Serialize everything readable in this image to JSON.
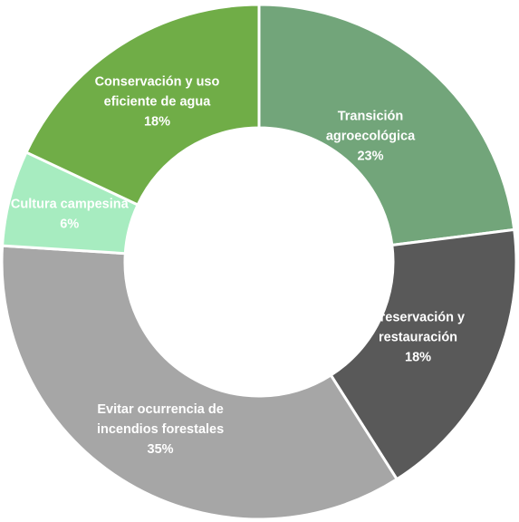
{
  "chart_data": {
    "type": "pie",
    "variant": "donut",
    "title": "",
    "slices": [
      {
        "label_lines": [
          "Transición",
          "agroecológica"
        ],
        "value_label": "23%",
        "value": 23,
        "color": "#72a57a"
      },
      {
        "label_lines": [
          "Preservación y",
          "restauración"
        ],
        "value_label": "18%",
        "value": 18,
        "color": "#595959"
      },
      {
        "label_lines": [
          "Evitar ocurrencia de",
          "incendios forestales"
        ],
        "value_label": "35%",
        "value": 35,
        "color": "#a6a6a6"
      },
      {
        "label_lines": [
          "Cultura campesina"
        ],
        "value_label": "6%",
        "value": 6,
        "color": "#a7ecc0"
      },
      {
        "label_lines": [
          "Conservación y uso",
          "eficiente de agua"
        ],
        "value_label": "18%",
        "value": 18,
        "color": "#70ad47"
      }
    ],
    "legend": "none",
    "start_angle": "12 o'clock",
    "direction": "clockwise"
  }
}
